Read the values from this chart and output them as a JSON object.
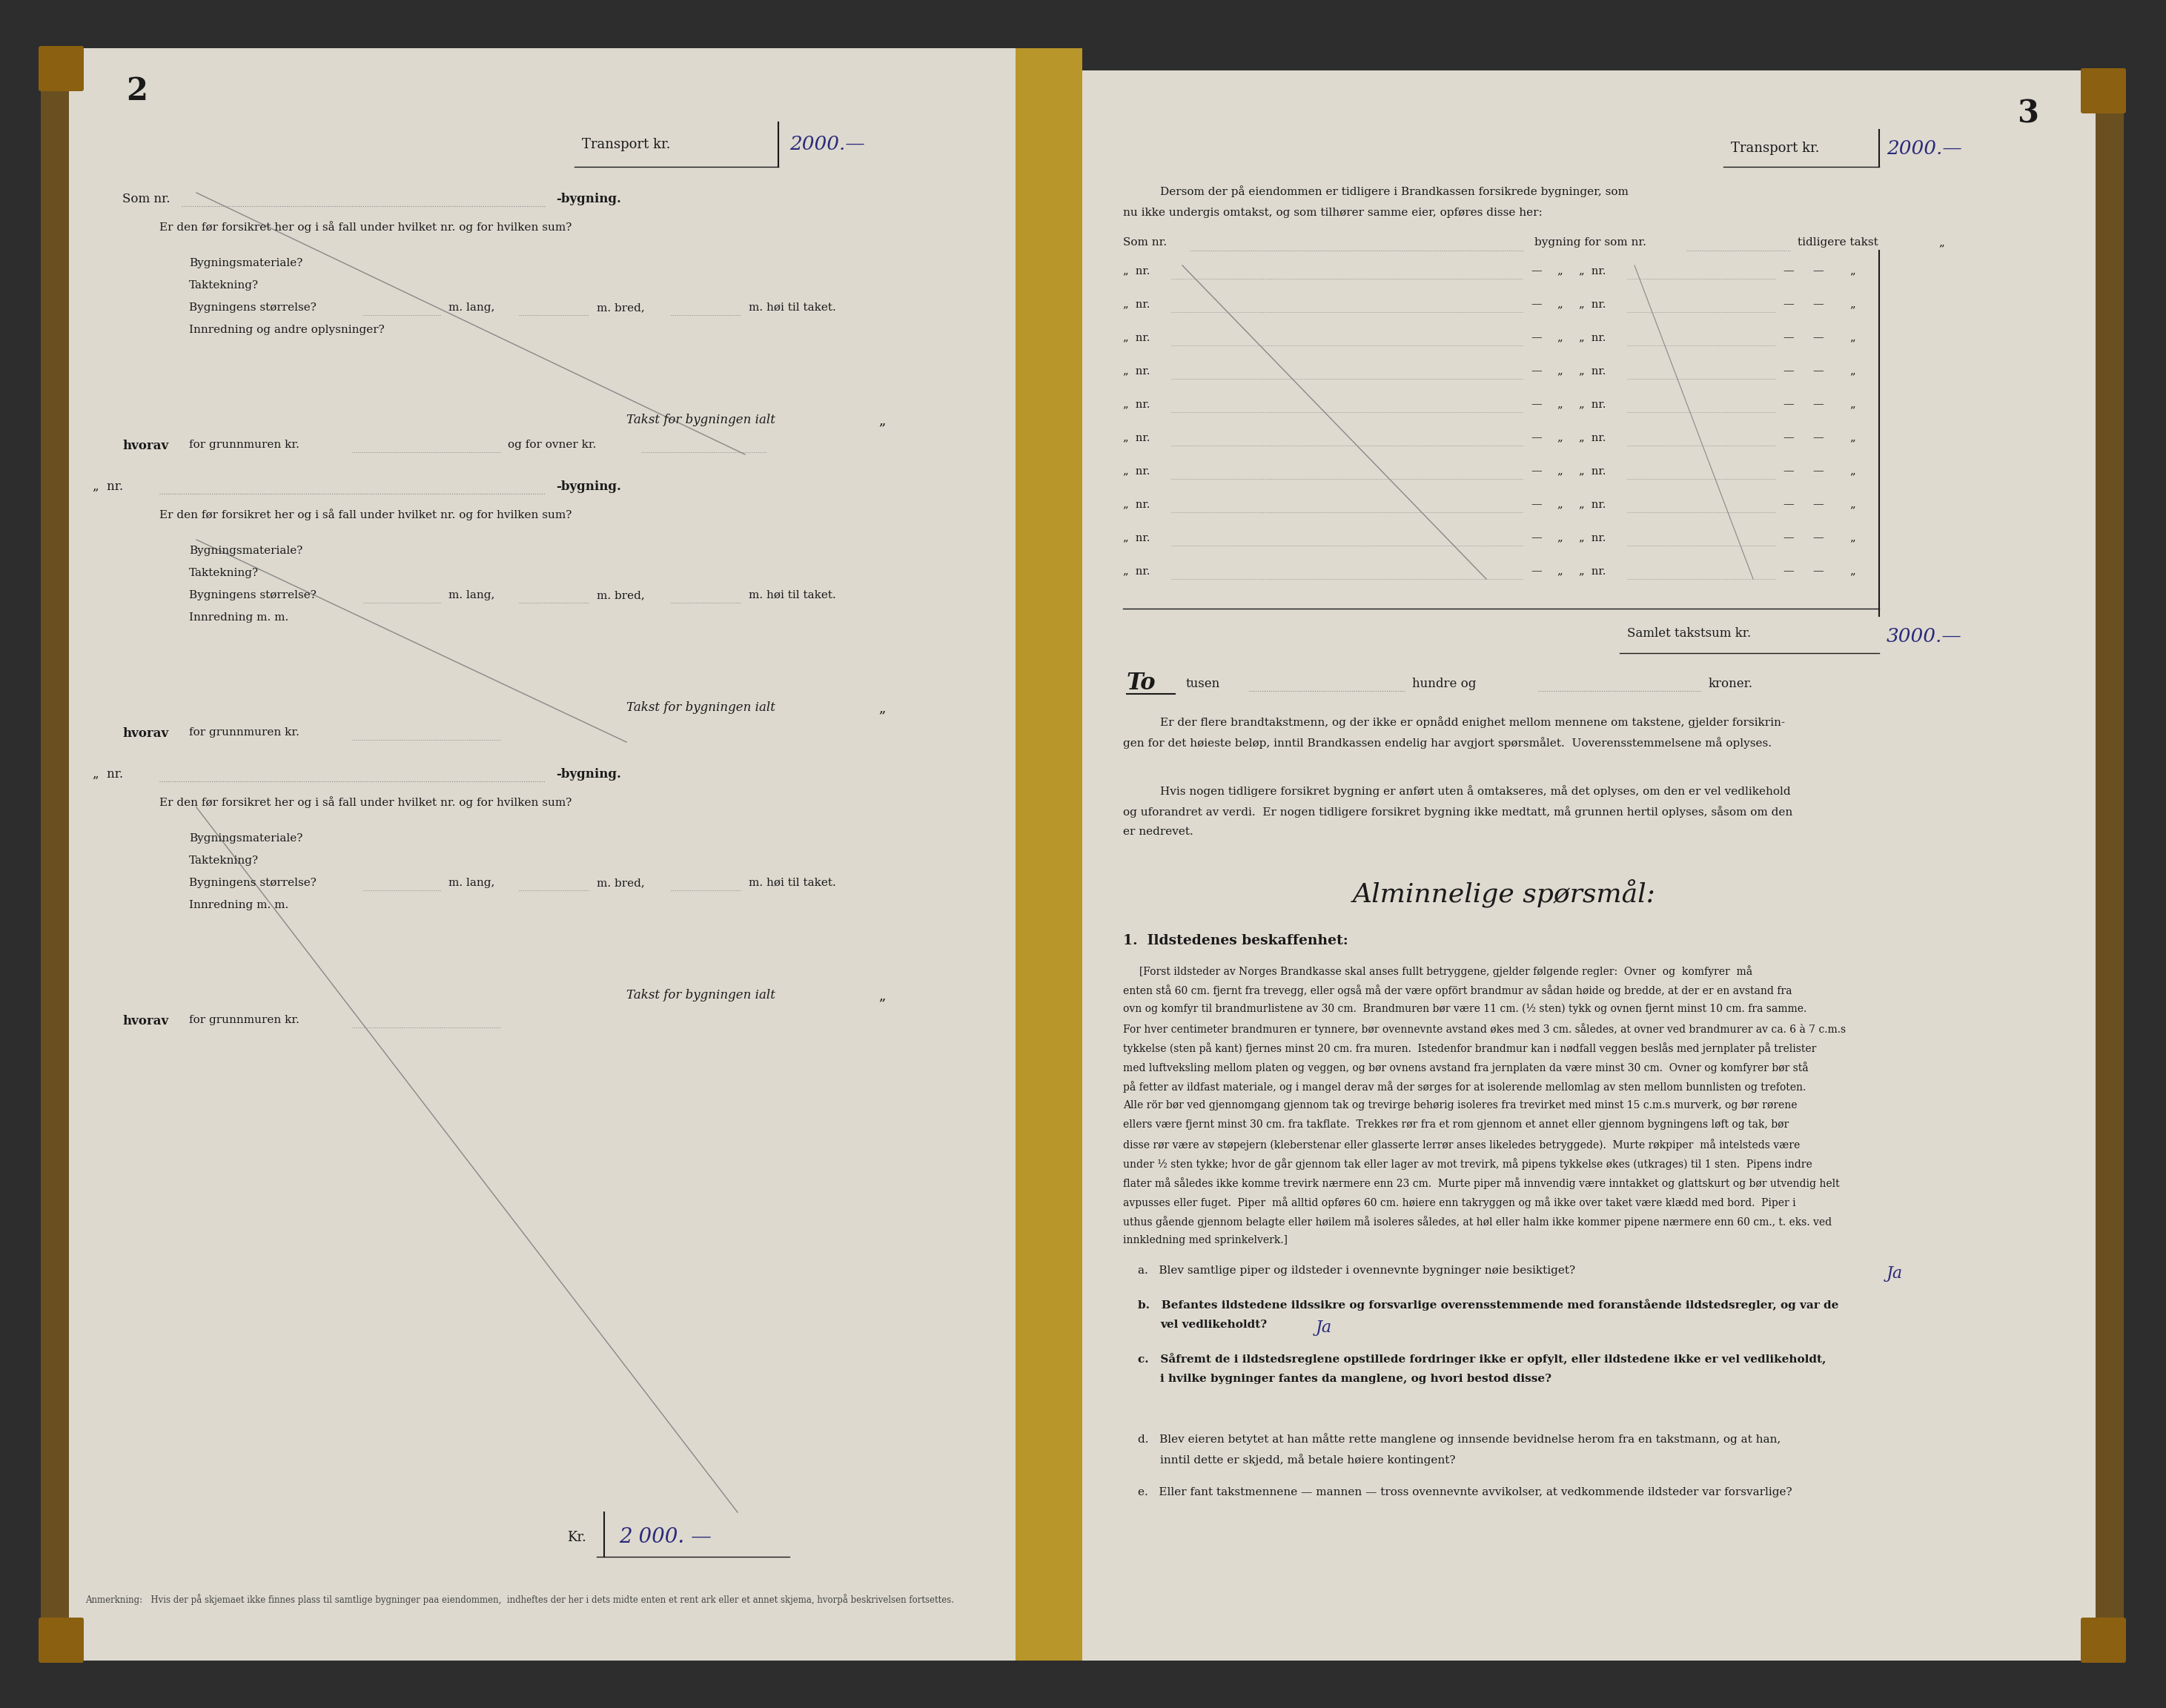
{
  "bg_color": "#2d2d2d",
  "paper_color_left": "#ddd9cf",
  "paper_color_right": "#dedad0",
  "left_page_num": "2",
  "right_page_num": "3",
  "spine_color": "#8B6010",
  "binding_color": "#c8a050",
  "marbled_color": "#6a5020",
  "transport_label": "Transport kr.",
  "transport_amount": "2000.—",
  "samlet_label": "Samlet takstsum kr.",
  "samlet_amount": "3000.—",
  "kr_bottom": "Kr.",
  "kr_bottom_amount": "2 000. —",
  "handwritten_color": "#2a2a7a",
  "handwritten_color2": "#3a3a3a",
  "text_color": "#1a1a1a",
  "line_color": "#333333",
  "dotted_color": "#888888",
  "to_text": "To",
  "footnote_text": "Anmerkning:   Hvis der på skjemaet ikke finnes plass til samtlige bygninger paa eiendommen,  indheftes der her i dets midte enten et rent ark eller et annet skjema, hvorpå beskrivelsen fortsettes."
}
